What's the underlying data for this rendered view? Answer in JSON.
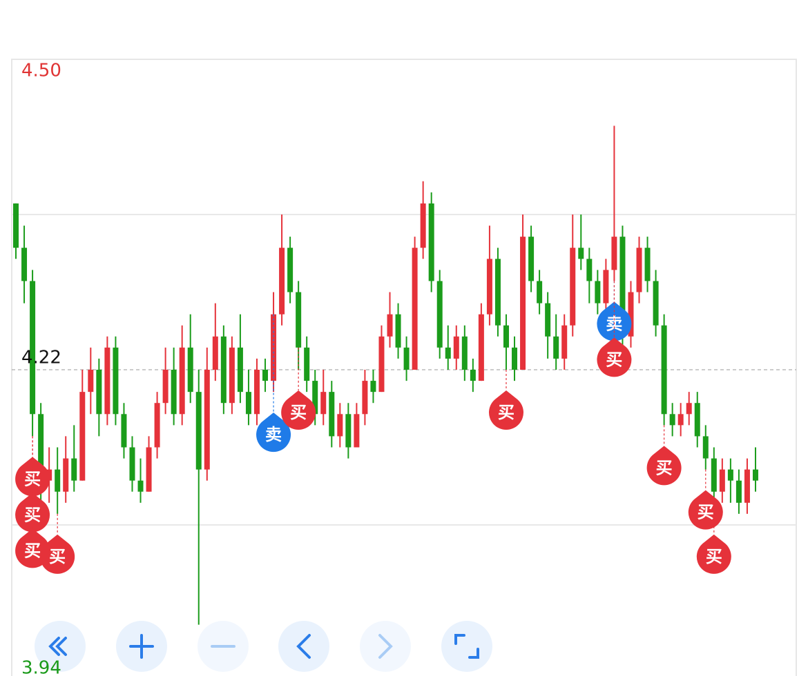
{
  "chart_data": {
    "type": "candlestick",
    "ylim": [
      3.94,
      4.5
    ],
    "yticks": [
      {
        "value": 4.5,
        "label": "4.50"
      },
      4.22,
      3.94
    ],
    "tick_colors": [
      "#e03434",
      "#111111",
      "#1a9a1a"
    ],
    "tick_styles": [
      "none",
      "dashed",
      "none"
    ],
    "gridlines": [
      4.36,
      4.08
    ],
    "up_color": "#e5323a",
    "down_color": "#1b9c1b",
    "candles": [
      [
        4.37,
        4.37,
        4.32,
        4.33
      ],
      [
        4.33,
        4.35,
        4.28,
        4.3
      ],
      [
        4.3,
        4.31,
        4.16,
        4.18
      ],
      [
        4.18,
        4.19,
        4.09,
        4.12
      ],
      [
        4.12,
        4.15,
        4.1,
        4.13
      ],
      [
        4.13,
        4.15,
        4.09,
        4.11
      ],
      [
        4.11,
        4.16,
        4.1,
        4.14
      ],
      [
        4.14,
        4.17,
        4.11,
        4.12
      ],
      [
        4.12,
        4.22,
        4.12,
        4.2
      ],
      [
        4.2,
        4.24,
        4.18,
        4.22
      ],
      [
        4.22,
        4.23,
        4.16,
        4.18
      ],
      [
        4.18,
        4.25,
        4.17,
        4.24
      ],
      [
        4.24,
        4.25,
        4.17,
        4.18
      ],
      [
        4.18,
        4.19,
        4.14,
        4.15
      ],
      [
        4.15,
        4.16,
        4.11,
        4.12
      ],
      [
        4.12,
        4.14,
        4.1,
        4.11
      ],
      [
        4.11,
        4.16,
        4.11,
        4.15
      ],
      [
        4.15,
        4.2,
        4.14,
        4.19
      ],
      [
        4.19,
        4.24,
        4.18,
        4.22
      ],
      [
        4.22,
        4.24,
        4.17,
        4.18
      ],
      [
        4.18,
        4.26,
        4.17,
        4.24
      ],
      [
        4.24,
        4.27,
        4.19,
        4.2
      ],
      [
        4.2,
        4.22,
        3.99,
        4.13
      ],
      [
        4.13,
        4.24,
        4.12,
        4.22
      ],
      [
        4.22,
        4.28,
        4.21,
        4.25
      ],
      [
        4.25,
        4.26,
        4.18,
        4.19
      ],
      [
        4.19,
        4.25,
        4.18,
        4.24
      ],
      [
        4.24,
        4.27,
        4.19,
        4.2
      ],
      [
        4.2,
        4.22,
        4.17,
        4.18
      ],
      [
        4.18,
        4.23,
        4.17,
        4.22
      ],
      [
        4.22,
        4.23,
        4.2,
        4.21
      ],
      [
        4.21,
        4.29,
        4.2,
        4.27
      ],
      [
        4.27,
        4.36,
        4.26,
        4.33
      ],
      [
        4.33,
        4.34,
        4.28,
        4.29
      ],
      [
        4.29,
        4.3,
        4.22,
        4.24
      ],
      [
        4.24,
        4.25,
        4.2,
        4.21
      ],
      [
        4.21,
        4.22,
        4.17,
        4.18
      ],
      [
        4.18,
        4.22,
        4.17,
        4.2
      ],
      [
        4.2,
        4.21,
        4.15,
        4.16
      ],
      [
        4.16,
        4.19,
        4.15,
        4.18
      ],
      [
        4.18,
        4.19,
        4.14,
        4.15
      ],
      [
        4.15,
        4.19,
        4.15,
        4.18
      ],
      [
        4.18,
        4.22,
        4.17,
        4.21
      ],
      [
        4.21,
        4.22,
        4.19,
        4.2
      ],
      [
        4.2,
        4.26,
        4.2,
        4.25
      ],
      [
        4.25,
        4.29,
        4.24,
        4.27
      ],
      [
        4.27,
        4.28,
        4.23,
        4.24
      ],
      [
        4.24,
        4.25,
        4.21,
        4.22
      ],
      [
        4.22,
        4.34,
        4.22,
        4.33
      ],
      [
        4.33,
        4.39,
        4.32,
        4.37
      ],
      [
        4.37,
        4.38,
        4.29,
        4.3
      ],
      [
        4.3,
        4.31,
        4.23,
        4.24
      ],
      [
        4.24,
        4.26,
        4.22,
        4.23
      ],
      [
        4.23,
        4.26,
        4.22,
        4.25
      ],
      [
        4.25,
        4.26,
        4.21,
        4.22
      ],
      [
        4.22,
        4.23,
        4.2,
        4.21
      ],
      [
        4.21,
        4.28,
        4.21,
        4.27
      ],
      [
        4.27,
        4.35,
        4.26,
        4.32
      ],
      [
        4.32,
        4.33,
        4.25,
        4.26
      ],
      [
        4.26,
        4.27,
        4.22,
        4.24
      ],
      [
        4.24,
        4.25,
        4.21,
        4.22
      ],
      [
        4.22,
        4.36,
        4.22,
        4.34
      ],
      [
        4.34,
        4.35,
        4.29,
        4.3
      ],
      [
        4.3,
        4.31,
        4.27,
        4.28
      ],
      [
        4.28,
        4.29,
        4.23,
        4.25
      ],
      [
        4.25,
        4.27,
        4.22,
        4.23
      ],
      [
        4.23,
        4.27,
        4.22,
        4.26
      ],
      [
        4.26,
        4.36,
        4.25,
        4.33
      ],
      [
        4.33,
        4.36,
        4.31,
        4.32
      ],
      [
        4.32,
        4.33,
        4.28,
        4.3
      ],
      [
        4.3,
        4.31,
        4.27,
        4.28
      ],
      [
        4.28,
        4.32,
        4.27,
        4.31
      ],
      [
        4.31,
        4.44,
        4.3,
        4.34
      ],
      [
        4.34,
        4.35,
        4.24,
        4.25
      ],
      [
        4.25,
        4.3,
        4.24,
        4.29
      ],
      [
        4.29,
        4.34,
        4.28,
        4.33
      ],
      [
        4.33,
        4.34,
        4.29,
        4.3
      ],
      [
        4.3,
        4.31,
        4.25,
        4.26
      ],
      [
        4.26,
        4.27,
        4.17,
        4.18
      ],
      [
        4.18,
        4.19,
        4.16,
        4.17
      ],
      [
        4.17,
        4.19,
        4.16,
        4.18
      ],
      [
        4.18,
        4.2,
        4.17,
        4.19
      ],
      [
        4.19,
        4.2,
        4.15,
        4.16
      ],
      [
        4.16,
        4.17,
        4.13,
        4.14
      ],
      [
        4.14,
        4.15,
        4.09,
        4.11
      ],
      [
        4.11,
        4.14,
        4.1,
        4.13
      ],
      [
        4.13,
        4.14,
        4.1,
        4.12
      ],
      [
        4.12,
        4.13,
        4.09,
        4.1
      ],
      [
        4.1,
        4.14,
        4.09,
        4.13
      ],
      [
        4.13,
        4.15,
        4.11,
        4.12
      ]
    ],
    "markers": [
      {
        "label": "买",
        "index": 2,
        "price": 4.16,
        "color": "#e5323a"
      },
      {
        "label": "买",
        "index": 2,
        "price": 4.16,
        "color": "#e5323a"
      },
      {
        "label": "买",
        "index": 2,
        "price": 4.16,
        "color": "#e5323a"
      },
      {
        "label": "买",
        "index": 5,
        "price": 4.09,
        "color": "#e5323a"
      },
      {
        "label": "卖",
        "index": 31,
        "price": 4.27,
        "color": "#1f7be8"
      },
      {
        "label": "买",
        "index": 34,
        "price": 4.24,
        "color": "#e5323a"
      },
      {
        "label": "买",
        "index": 59,
        "price": 4.22,
        "color": "#e5323a"
      },
      {
        "label": "卖",
        "index": 72,
        "price": 4.3,
        "color": "#1f7be8"
      },
      {
        "label": "买",
        "index": 72,
        "price": 4.3,
        "color": "#e5323a"
      },
      {
        "label": "买",
        "index": 78,
        "price": 4.17,
        "color": "#e5323a"
      },
      {
        "label": "买",
        "index": 83,
        "price": 4.13,
        "color": "#e5323a"
      },
      {
        "label": "买",
        "index": 84,
        "price": 4.09,
        "color": "#e5323a"
      }
    ]
  }
}
